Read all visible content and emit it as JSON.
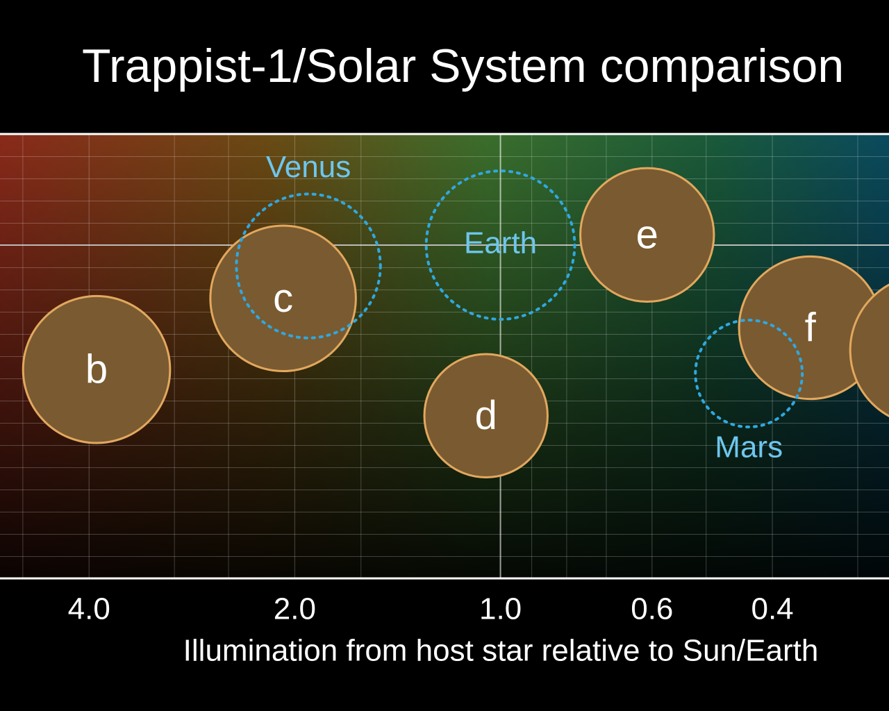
{
  "chart_data": {
    "type": "bubble",
    "title": "Trappist-1/Solar System comparison",
    "x_label": "Illumination from host star relative to Sun/Earth",
    "log_x": true,
    "x_reversed": true,
    "xlim": [
      5.4,
      0.27
    ],
    "xticks": [
      {
        "value": 4,
        "label": "4.0"
      },
      {
        "value": 2,
        "label": "2.0"
      },
      {
        "value": 1,
        "label": "1.0"
      },
      0.6,
      0.4
    ],
    "x_minor_grid": [
      5,
      3,
      2.5,
      1.6,
      0.9,
      0.8,
      0.7,
      0.5,
      0.3
    ],
    "ylim": [
      0,
      10
    ],
    "grid": true,
    "planets": {
      "labels": [
        "b",
        "c",
        "d",
        "e",
        "f",
        null
      ],
      "x": [
        3.9,
        2.08,
        1.05,
        0.61,
        0.352,
        0.239
      ],
      "y": [
        4.7,
        6.3,
        3.66,
        7.73,
        5.64,
        5.13
      ],
      "sizes": [
        0.99,
        0.98,
        0.83,
        0.9,
        0.96,
        1.01
      ],
      "color": "#7a5a30",
      "edge_color": "#e2a85e"
    },
    "solar_planets": {
      "labels": [
        "Venus",
        "Earth",
        "Mars"
      ],
      "x": [
        1.91,
        1.0,
        0.433
      ],
      "y": [
        7.03,
        7.5,
        4.61
      ],
      "sizes": [
        0.97,
        1.0,
        0.72
      ],
      "color": "#2fa8e0",
      "label_color": "#6ec6ee"
    }
  }
}
